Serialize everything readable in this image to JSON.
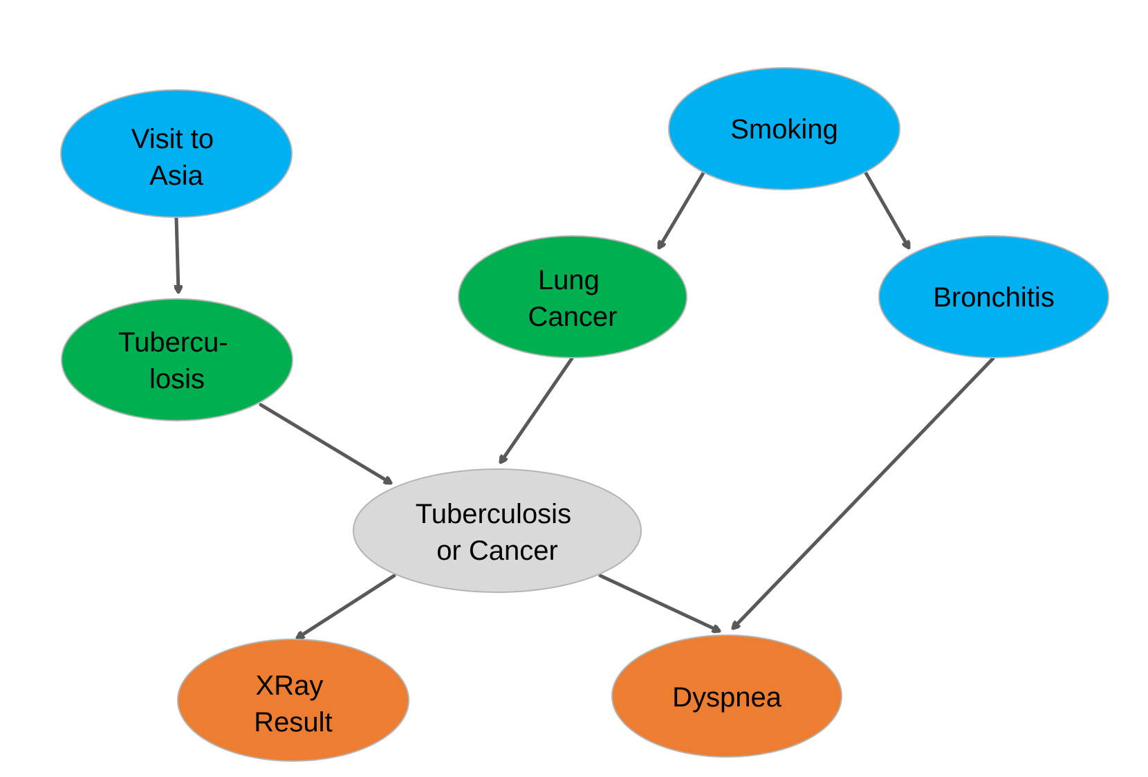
{
  "colors": {
    "blue": "#00b0f0",
    "green": "#00b050",
    "gray": "#d9d9d9",
    "orange": "#ed7d31",
    "edge": "#595959"
  },
  "nodes": {
    "visit_to_asia": {
      "lines": [
        "Visit to",
        "Asia"
      ]
    },
    "smoking": {
      "lines": [
        "Smoking"
      ]
    },
    "tuberculosis": {
      "lines": [
        "Tubercu-",
        "losis"
      ]
    },
    "lung_cancer": {
      "lines": [
        "Lung",
        "Cancer"
      ]
    },
    "bronchitis": {
      "lines": [
        "Bronchitis"
      ]
    },
    "tuberculosis_or_cancer": {
      "lines": [
        "Tuberculosis",
        "or Cancer"
      ]
    },
    "xray_result": {
      "lines": [
        "XRay",
        "Result"
      ]
    },
    "dyspnea": {
      "lines": [
        "Dyspnea"
      ]
    }
  },
  "edges": [
    {
      "from": "visit_to_asia",
      "to": "tuberculosis"
    },
    {
      "from": "smoking",
      "to": "lung_cancer"
    },
    {
      "from": "smoking",
      "to": "bronchitis"
    },
    {
      "from": "tuberculosis",
      "to": "tuberculosis_or_cancer"
    },
    {
      "from": "lung_cancer",
      "to": "tuberculosis_or_cancer"
    },
    {
      "from": "tuberculosis_or_cancer",
      "to": "xray_result"
    },
    {
      "from": "tuberculosis_or_cancer",
      "to": "dyspnea"
    },
    {
      "from": "bronchitis",
      "to": "dyspnea"
    }
  ]
}
